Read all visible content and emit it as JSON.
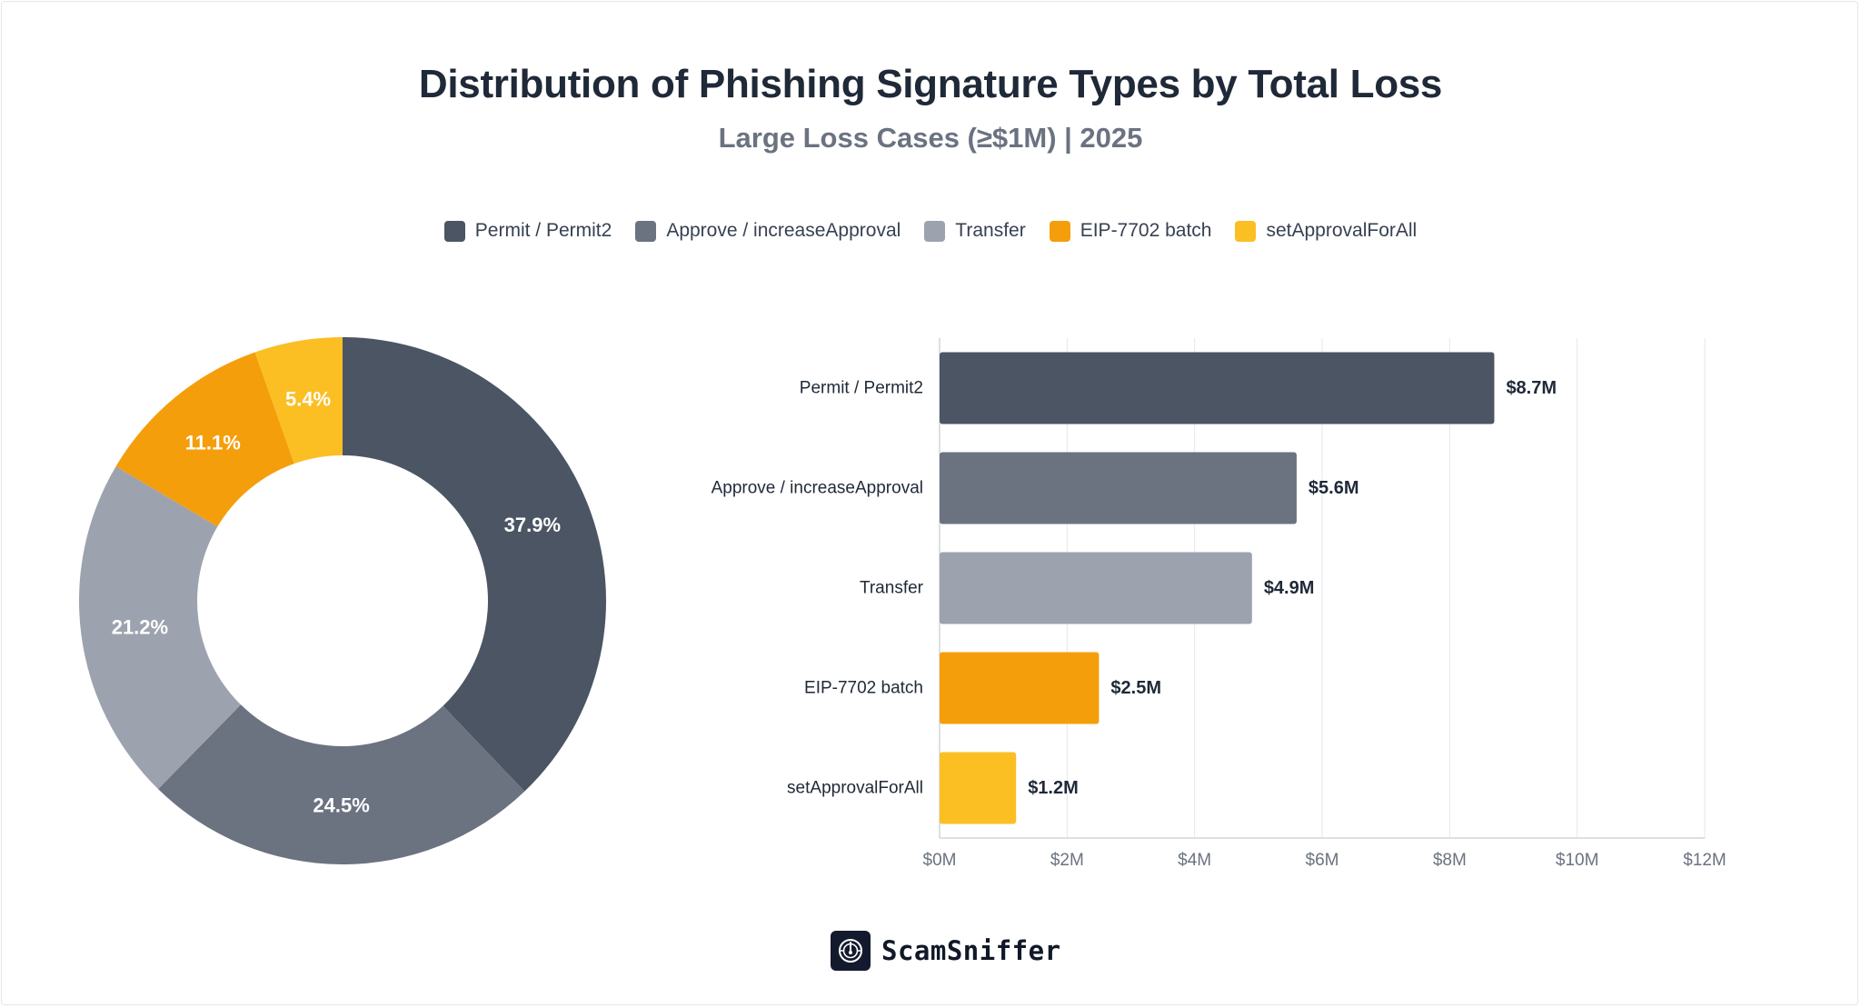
{
  "chart_data": [
    {
      "type": "pie",
      "variant": "donut",
      "title": "Distribution of Phishing Signature Types by Total Loss",
      "subtitle": "Large Loss Cases (≥$1M) | 2025",
      "labels": [
        "Permit / Permit2",
        "Approve / increaseApproval",
        "Transfer",
        "EIP-7702 batch",
        "setApprovalForAll"
      ],
      "values": [
        37.9,
        24.5,
        21.2,
        11.1,
        5.4
      ],
      "value_labels": [
        "37.9%",
        "24.5%",
        "21.2%",
        "11.1%",
        "5.4%"
      ],
      "colors": [
        "#4b5563",
        "#6b7280",
        "#9ca3af",
        "#f59e0b",
        "#fbbf24"
      ],
      "legend": "top-center"
    },
    {
      "type": "bar",
      "orientation": "horizontal",
      "categories": [
        "Permit / Permit2",
        "Approve / increaseApproval",
        "Transfer",
        "EIP-7702 batch",
        "setApprovalForAll"
      ],
      "values": [
        8.7,
        5.6,
        4.9,
        2.5,
        1.2
      ],
      "value_unit": "$M",
      "value_labels": [
        "$8.7M",
        "$5.6M",
        "$4.9M",
        "$2.5M",
        "$1.2M"
      ],
      "colors": [
        "#4b5563",
        "#6b7280",
        "#9ca3af",
        "#f59e0b",
        "#fbbf24"
      ],
      "xlim": [
        0,
        12
      ],
      "xticks": [
        0,
        2,
        4,
        6,
        8,
        10,
        12
      ],
      "xtick_labels": [
        "$0M",
        "$2M",
        "$4M",
        "$6M",
        "$8M",
        "$10M",
        "$12M"
      ],
      "xlabel": "",
      "ylabel": "",
      "grid": "vertical"
    }
  ],
  "footer": {
    "brand_name": "ScamSniffer",
    "logo_icon": "scamsniffer-logo-icon"
  }
}
